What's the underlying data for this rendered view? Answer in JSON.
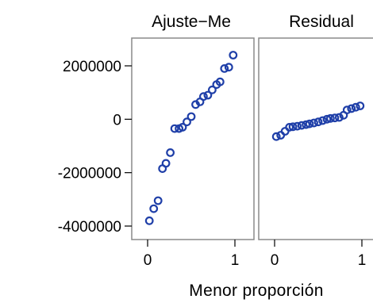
{
  "chart_data": {
    "type": "scatter",
    "xlabel": "Menor proporción",
    "ylabel": "",
    "ylim": [
      -4300000,
      2900000
    ],
    "xlim": [
      -0.1,
      1.1
    ],
    "y_ticks": [
      "2000000",
      "0",
      "-2000000",
      "-4000000"
    ],
    "y_tick_values": [
      2000000,
      0,
      -2000000,
      -4000000
    ],
    "x_ticks": [
      "0",
      "1"
    ],
    "x_tick_values": [
      0,
      1
    ],
    "grid": false,
    "marker_color": "#1f3fa8",
    "panels": [
      {
        "title": "Ajuste−Me",
        "series": [
          {
            "x": [
              0.02,
              0.07,
              0.12,
              0.17,
              0.21,
              0.26,
              0.31,
              0.36,
              0.4,
              0.45,
              0.5,
              0.55,
              0.6,
              0.64,
              0.69,
              0.74,
              0.79,
              0.83,
              0.88,
              0.93,
              0.98
            ],
            "y": [
              -3800000,
              -3350000,
              -3050000,
              -1850000,
              -1650000,
              -1250000,
              -350000,
              -350000,
              -300000,
              -100000,
              100000,
              550000,
              650000,
              850000,
              900000,
              1100000,
              1300000,
              1400000,
              1900000,
              1950000,
              2400000
            ]
          }
        ]
      },
      {
        "title": "Residual",
        "series": [
          {
            "x": [
              0.02,
              0.07,
              0.12,
              0.17,
              0.21,
              0.26,
              0.31,
              0.36,
              0.4,
              0.45,
              0.5,
              0.55,
              0.6,
              0.64,
              0.69,
              0.74,
              0.79,
              0.83,
              0.88,
              0.93,
              0.98
            ],
            "y": [
              -650000,
              -600000,
              -450000,
              -300000,
              -280000,
              -260000,
              -230000,
              -200000,
              -170000,
              -140000,
              -100000,
              -50000,
              0,
              30000,
              50000,
              70000,
              150000,
              350000,
              400000,
              450000,
              500000
            ]
          }
        ]
      }
    ]
  }
}
